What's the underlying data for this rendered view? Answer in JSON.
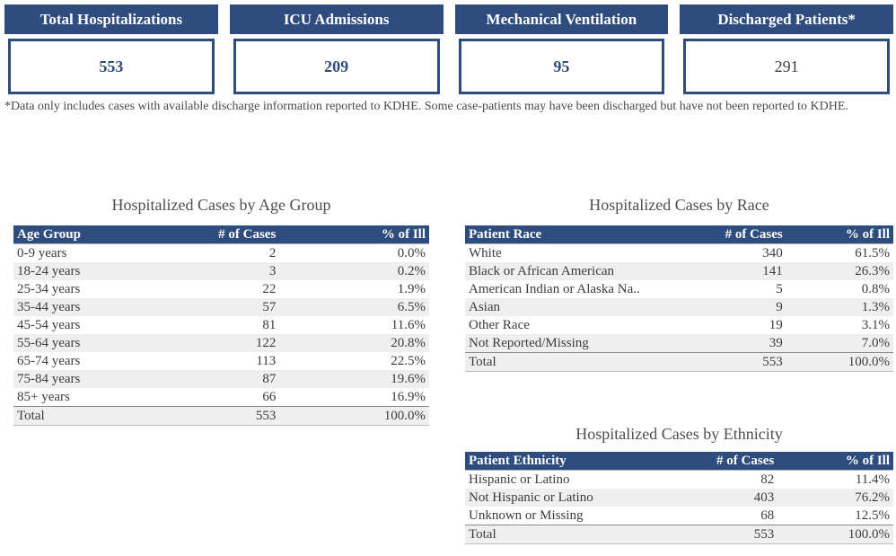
{
  "cards": [
    {
      "title": "Total Hospitalizations",
      "value": "553",
      "emphasis": true
    },
    {
      "title": "ICU Admissions",
      "value": "209",
      "emphasis": true
    },
    {
      "title": "Mechanical Ventilation",
      "value": "95",
      "emphasis": true
    },
    {
      "title": "Discharged Patients*",
      "value": "291",
      "emphasis": false
    }
  ],
  "footnote": "*Data only includes cases with available discharge information reported to KDHE. Some case-patients may have been discharged but have not been reported to KDHE.",
  "tables": {
    "age": {
      "title": "Hospitalized Cases by Age Group",
      "columns": [
        "Age Group",
        "# of Cases",
        "% of Ill"
      ],
      "rows": [
        [
          "0-9 years",
          "2",
          "0.0%"
        ],
        [
          "18-24 years",
          "3",
          "0.2%"
        ],
        [
          "25-34 years",
          "22",
          "1.9%"
        ],
        [
          "35-44 years",
          "57",
          "6.5%"
        ],
        [
          "45-54 years",
          "81",
          "11.6%"
        ],
        [
          "55-64 years",
          "122",
          "20.8%"
        ],
        [
          "65-74 years",
          "113",
          "22.5%"
        ],
        [
          "75-84 years",
          "87",
          "19.6%"
        ],
        [
          "85+ years",
          "66",
          "16.9%"
        ]
      ],
      "total": [
        "Total",
        "553",
        "100.0%"
      ]
    },
    "race": {
      "title": "Hospitalized Cases by Race",
      "columns": [
        "Patient Race",
        "# of Cases",
        "% of Ill"
      ],
      "rows": [
        [
          "White",
          "340",
          "61.5%"
        ],
        [
          "Black or African American",
          "141",
          "26.3%"
        ],
        [
          "American Indian or Alaska Na..",
          "5",
          "0.8%"
        ],
        [
          "Asian",
          "9",
          "1.3%"
        ],
        [
          "Other Race",
          "19",
          "3.1%"
        ],
        [
          "Not Reported/Missing",
          "39",
          "7.0%"
        ]
      ],
      "total": [
        "Total",
        "553",
        "100.0%"
      ]
    },
    "ethnicity": {
      "title": "Hospitalized Cases by Ethnicity",
      "columns": [
        "Patient Ethnicity",
        "# of Cases",
        "% of Ill"
      ],
      "rows": [
        [
          "Hispanic or Latino",
          "82",
          "11.4%"
        ],
        [
          "Not Hispanic or Latino",
          "403",
          "76.2%"
        ],
        [
          "Unknown or Missing",
          "68",
          "12.5%"
        ]
      ],
      "total": [
        "Total",
        "553",
        "100.0%"
      ]
    }
  },
  "colors": {
    "header_navy": "#2e4c7d",
    "row_alt": "#efefef",
    "value_text": "#2e4c7d",
    "muted_value_text": "#404040"
  }
}
